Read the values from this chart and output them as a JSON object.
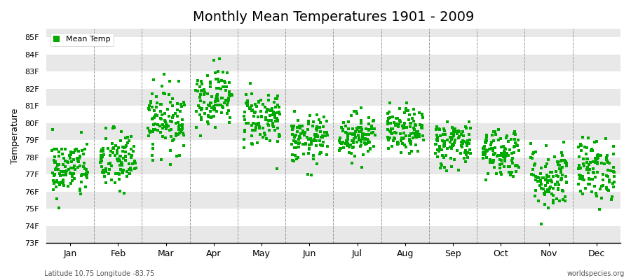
{
  "title": "Monthly Mean Temperatures 1901 - 2009",
  "ylabel": "Temperature",
  "xlabel_labels": [
    "Jan",
    "Feb",
    "Mar",
    "Apr",
    "May",
    "Jun",
    "Jul",
    "Aug",
    "Sep",
    "Oct",
    "Nov",
    "Dec"
  ],
  "ytick_labels": [
    "73F",
    "74F",
    "75F",
    "76F",
    "77F",
    "78F",
    "79F",
    "80F",
    "81F",
    "82F",
    "83F",
    "84F",
    "85F"
  ],
  "ytick_values": [
    73,
    74,
    75,
    76,
    77,
    78,
    79,
    80,
    81,
    82,
    83,
    84,
    85
  ],
  "ylim_min": 73,
  "ylim_max": 85,
  "legend_label": "Mean Temp",
  "dot_color": "#00aa00",
  "dot_size": 6,
  "background_color": "#ffffff",
  "plot_bg_color": "#ffffff",
  "stripe_color": "#e8e8e8",
  "subtitle": "Latitude 10.75 Longitude -83.75",
  "watermark": "worldspecies.org",
  "monthly_means": [
    77.3,
    77.8,
    80.2,
    81.5,
    80.3,
    79.0,
    79.3,
    79.5,
    78.8,
    78.3,
    76.8,
    77.3
  ],
  "monthly_stds": [
    0.85,
    0.9,
    0.95,
    0.85,
    0.85,
    0.7,
    0.65,
    0.65,
    0.7,
    0.75,
    0.95,
    0.9
  ],
  "n_years": 109,
  "seed": 42,
  "title_fontsize": 14,
  "axis_label_fontsize": 9,
  "tick_fontsize": 8
}
